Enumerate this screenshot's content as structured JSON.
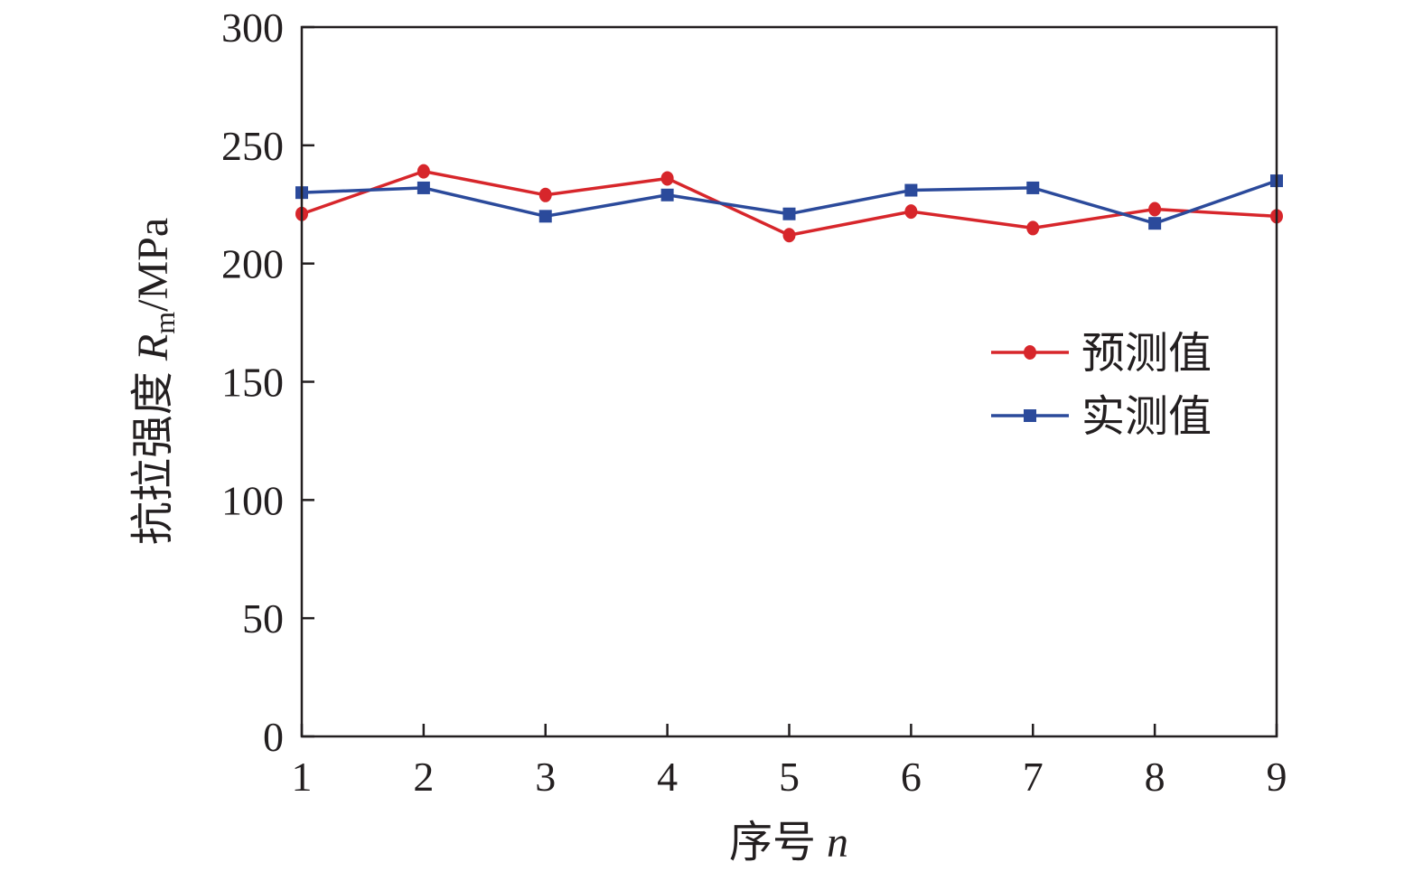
{
  "chart_data": {
    "type": "line",
    "x": [
      1,
      2,
      3,
      4,
      5,
      6,
      7,
      8,
      9
    ],
    "xlim": [
      1,
      9
    ],
    "ylim": [
      0,
      300
    ],
    "x_ticks": [
      "1",
      "2",
      "3",
      "4",
      "5",
      "6",
      "7",
      "8",
      "9"
    ],
    "y_ticks": [
      "0",
      "50",
      "100",
      "150",
      "200",
      "250",
      "300"
    ],
    "xlabel": {
      "text": "序号 ",
      "var": "n"
    },
    "ylabel": {
      "text": "抗拉强度 ",
      "var": "R",
      "sub": "m",
      "unit": "/MPa"
    },
    "grid": false,
    "legend_position": "right-middle",
    "series": [
      {
        "name": "预测值",
        "marker": "circle",
        "color": "#d7262b",
        "values": [
          221,
          239,
          229,
          236,
          212,
          222,
          215,
          223,
          220
        ]
      },
      {
        "name": "实测值",
        "marker": "square",
        "color": "#2b4a9b",
        "values": [
          230,
          232,
          220,
          229,
          221,
          231,
          232,
          217,
          235
        ]
      }
    ]
  }
}
